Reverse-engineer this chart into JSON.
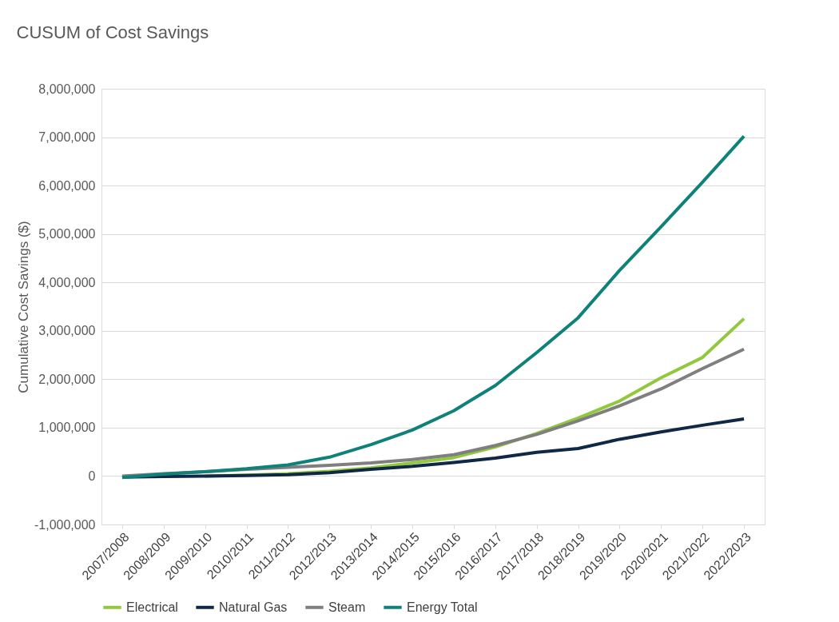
{
  "chart_data": {
    "type": "line",
    "title": "CUSUM of Cost Savings",
    "ylabel": "Cumulative Cost Savings ($)",
    "categories": [
      "2007/2008",
      "2008/2009",
      "2009/2010",
      "2010/2011",
      "2011/2012",
      "2012/2013",
      "2013/2014",
      "2014/2015",
      "2015/2016",
      "2016/2017",
      "2017/2018",
      "2018/2019",
      "2019/2020",
      "2020/2021",
      "2021/2022",
      "2022/2023"
    ],
    "series": [
      {
        "name": "Electrical",
        "color": "#92c83e",
        "values": [
          null,
          null,
          0,
          20000,
          50000,
          100000,
          170000,
          270000,
          380000,
          600000,
          880000,
          1200000,
          1550000,
          2030000,
          2450000,
          3250000
        ]
      },
      {
        "name": "Natural Gas",
        "color": "#0f2846",
        "values": [
          -20000,
          -10000,
          0,
          10000,
          30000,
          70000,
          140000,
          200000,
          280000,
          370000,
          490000,
          570000,
          760000,
          910000,
          1050000,
          1180000
        ]
      },
      {
        "name": "Steam",
        "color": "#7f7f7f",
        "values": [
          0,
          50000,
          90000,
          140000,
          180000,
          220000,
          270000,
          340000,
          440000,
          630000,
          860000,
          1140000,
          1450000,
          1800000,
          2220000,
          2620000
        ]
      },
      {
        "name": "Energy Total",
        "color": "#0e8279",
        "values": [
          -30000,
          40000,
          90000,
          150000,
          230000,
          390000,
          650000,
          950000,
          1350000,
          1870000,
          2550000,
          3270000,
          4250000,
          5150000,
          6070000,
          7020000
        ]
      }
    ],
    "ylim": [
      -1000000,
      8000000
    ],
    "yticks": [
      {
        "value": -1000000,
        "label": "-1,000,000"
      },
      {
        "value": 0,
        "label": "0"
      },
      {
        "value": 1000000,
        "label": "1,000,000"
      },
      {
        "value": 2000000,
        "label": "2,000,000"
      },
      {
        "value": 3000000,
        "label": "3,000,000"
      },
      {
        "value": 4000000,
        "label": "4,000,000"
      },
      {
        "value": 5000000,
        "label": "5,000,000"
      },
      {
        "value": 6000000,
        "label": "6,000,000"
      },
      {
        "value": 7000000,
        "label": "7,000,000"
      },
      {
        "value": 8000000,
        "label": "8,000,000"
      }
    ],
    "grid": "y",
    "legend": "bottom",
    "marker": "none",
    "line_style": "solid"
  }
}
